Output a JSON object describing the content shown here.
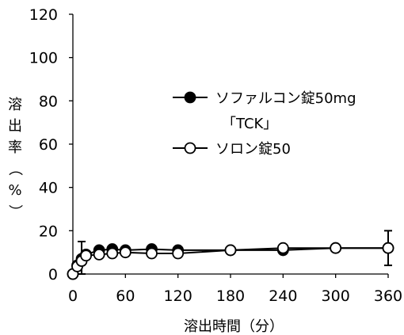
{
  "chart_data": {
    "type": "line",
    "title": "",
    "xlabel": "溶出時間（分）",
    "ylabel": "溶出率（%）",
    "xlim": [
      0,
      360
    ],
    "ylim": [
      0,
      120
    ],
    "xticks": [
      0,
      60,
      120,
      180,
      240,
      300,
      360
    ],
    "yticks": [
      0,
      20,
      40,
      60,
      80,
      100,
      120
    ],
    "grid": false,
    "legend_position": "right",
    "series": [
      {
        "name": "ソファルコン錠50mg「TCK」",
        "marker": "filled-circle",
        "color": "#000000",
        "x": [
          0,
          5,
          10,
          15,
          30,
          45,
          60,
          90,
          120,
          180,
          240,
          300,
          360
        ],
        "y": [
          0,
          4,
          7,
          9,
          11,
          11.5,
          11,
          11.5,
          11,
          11,
          11,
          12,
          12
        ],
        "error_bars": [
          {
            "x": 10,
            "lower": 0,
            "upper": 15
          }
        ]
      },
      {
        "name": "ソロン錠50",
        "marker": "open-circle",
        "color": "#000000",
        "x": [
          0,
          5,
          10,
          15,
          30,
          45,
          60,
          90,
          120,
          180,
          240,
          300,
          360
        ],
        "y": [
          0,
          3.5,
          6,
          8.5,
          9,
          9.5,
          10,
          9.5,
          9.5,
          11,
          12,
          12,
          12
        ],
        "error_bars": [
          {
            "x": 360,
            "lower": 4,
            "upper": 20
          }
        ]
      }
    ]
  }
}
